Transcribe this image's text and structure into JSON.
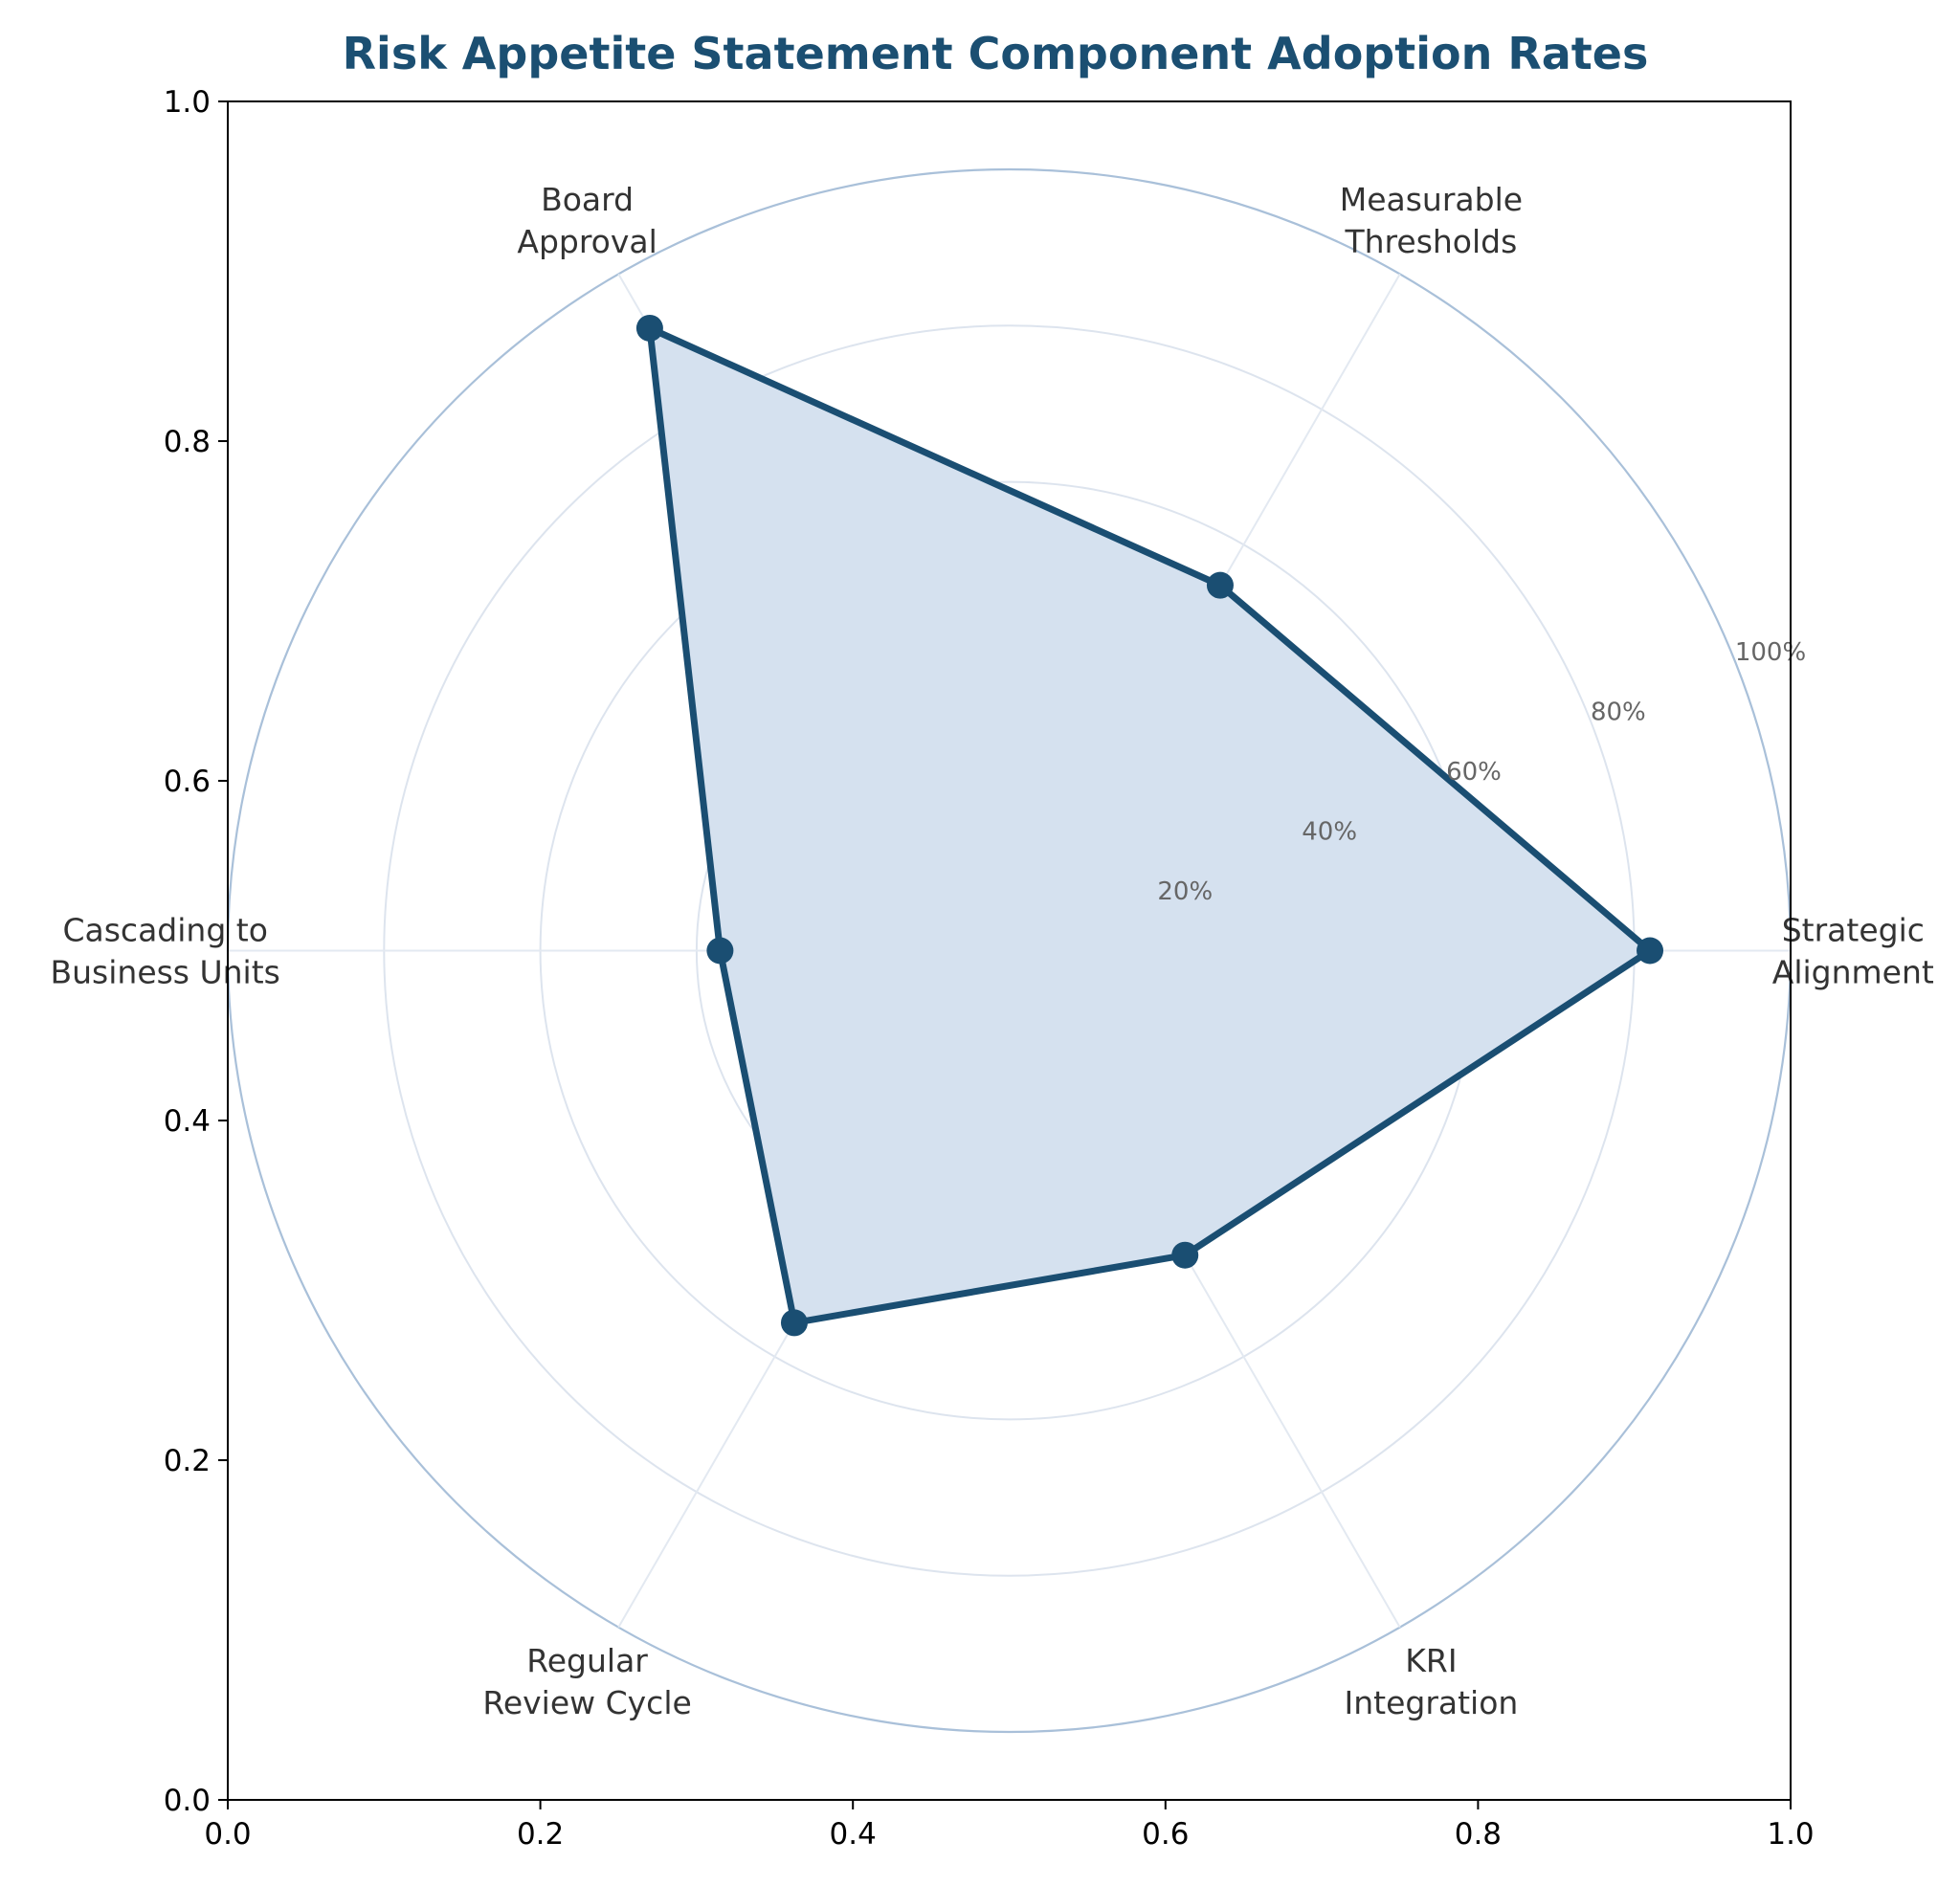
{
  "chart_data": {
    "type": "radar",
    "title": "Risk Appetite Statement Component Adoption Rates",
    "categories": [
      "Strategic\nAlignment",
      "Measurable\nThresholds",
      "Board\nApproval",
      "Cascading to\nBusiness Units",
      "Regular\nReview Cycle",
      "KRI\nIntegration"
    ],
    "series": [
      {
        "values": [
          0.82,
          0.54,
          0.92,
          0.37,
          0.55,
          0.45
        ]
      }
    ],
    "radial_ticks": [
      0.2,
      0.4,
      0.6,
      0.8,
      1.0
    ],
    "radial_tick_labels": [
      "20%",
      "40%",
      "60%",
      "80%",
      "100%"
    ],
    "rlim": [
      0,
      1.0
    ],
    "cartesian_axes": {
      "xlim": [
        0,
        1
      ],
      "ylim": [
        0,
        1
      ],
      "xticks": [
        "0.0",
        "0.2",
        "0.4",
        "0.6",
        "0.8",
        "1.0"
      ],
      "yticks": [
        "0.0",
        "0.2",
        "0.4",
        "0.6",
        "0.8",
        "1.0"
      ]
    },
    "grid": true,
    "colors": {
      "title": "#1b4f72",
      "line": "#1a4e72",
      "fill": "#d5e1ef",
      "outer_ring": "#a9c0d9",
      "grid": "#dde4ee",
      "spoke": "#e3e9f1"
    }
  }
}
